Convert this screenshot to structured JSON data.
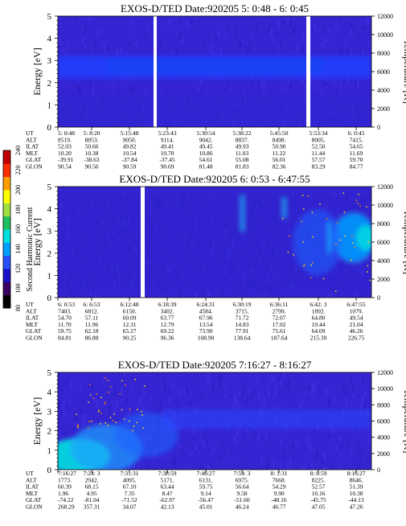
{
  "colorbar": {
    "label": "Second Harmonic Current",
    "ticks": [
      "240",
      "220",
      "200",
      "180",
      "160",
      "140",
      "120",
      "100",
      "80"
    ],
    "colors": [
      "#000000",
      "#3a0060",
      "#1a10c8",
      "#2850ff",
      "#00a0ff",
      "#00e0e0",
      "#20c060",
      "#a0e040",
      "#ffff00",
      "#ffa000",
      "#ff3000",
      "#c00000"
    ]
  },
  "panels": [
    {
      "title": "EXOS-D/TED   Date:920205  5: 0:48 - 6: 0:45",
      "ylabel": "Energy [eV]",
      "y2label": "Temperature [K]",
      "yticks": [
        "0",
        "1",
        "2",
        "3",
        "4",
        "5"
      ],
      "y2ticks": [
        "0",
        "2000",
        "4000",
        "6000",
        "8000",
        "10000",
        "12000"
      ],
      "table": {
        "rows": [
          {
            "label": "UT",
            "values": [
              "5: 0:48",
              "5: 8:20",
              "5:15:48",
              "5:23:43",
              "5:30:54",
              "5:38:22",
              "5:45:50",
              "5:53:34",
              "6: 0:45"
            ]
          },
          {
            "label": "ALT",
            "values": [
              "8519.",
              "8853.",
              "9050.",
              "9114.",
              "9042.",
              "8837.",
              "8498.",
              "8005.",
              "7415."
            ]
          },
          {
            "label": "ILAT",
            "values": [
              "52.03",
              "50.66",
              "49.82",
              "49.41",
              "49.45",
              "49.93",
              "50.90",
              "52.50",
              "54.65"
            ]
          },
          {
            "label": "MLT",
            "values": [
              "10.20",
              "10.38",
              "10.54",
              "10.70",
              "10.86",
              "11.03",
              "11.22",
              "11.44",
              "11.69"
            ]
          },
          {
            "label": "GLAT",
            "values": [
              "-39.91",
              "-38.63",
              "-37.84",
              "-37.45",
              "54.61",
              "55.08",
              "56.01",
              "57.57",
              "59.70"
            ]
          },
          {
            "label": "GLON",
            "values": [
              "90.54",
              "90.56",
              "90.59",
              "90.69",
              "81.48",
              "81.83",
              "82.36",
              "83.29",
              "84.77"
            ]
          }
        ]
      }
    },
    {
      "title": "EXOS-D/TED   Date:920205  6: 0:53 - 6:47:55",
      "ylabel": "Energy [eV]",
      "y2label": "Temperature [K]",
      "yticks": [
        "0",
        "1",
        "2",
        "3",
        "4",
        "5"
      ],
      "y2ticks": [
        "0",
        "2000",
        "4000",
        "6000",
        "8000",
        "10000",
        "12000"
      ],
      "table": {
        "rows": [
          {
            "label": "UT",
            "values": [
              "6: 0:53",
              "6: 6:53",
              "6:12:48",
              "6:18:39",
              "6:24:31",
              "6:30:19",
              "6:36:11",
              "6:42: 3",
              "6:47:55"
            ]
          },
          {
            "label": "ALT",
            "values": [
              "7403.",
              "6812.",
              "6150.",
              "3402.",
              "4584.",
              "3715.",
              "2799.",
              "1892.",
              "1079."
            ]
          },
          {
            "label": "ILAT",
            "values": [
              "54.70",
              "57.11",
              "60.09",
              "63.77",
              "67.96",
              "71.72",
              "72.07",
              "64.80",
              "49.54"
            ]
          },
          {
            "label": "MLT",
            "values": [
              "11.70",
              "11.96",
              "12.31",
              "12.79",
              "13.54",
              "14.83",
              "17.02",
              "19.44",
              "21.04"
            ]
          },
          {
            "label": "GLAT",
            "values": [
              "59.75",
              "62.18",
              "65.27",
              "69.22",
              "73.90",
              "77.91",
              "75.61",
              "64.09",
              "46.26"
            ]
          },
          {
            "label": "GLON",
            "values": [
              "84.81",
              "86.88",
              "90.25",
              "96.36",
              "108.90",
              "138.64",
              "187.64",
              "215.39",
              "226.75"
            ]
          }
        ]
      }
    },
    {
      "title": "EXOS-D/TED   Date:920205  7:16:27 - 8:16:27",
      "ylabel": "Energy [eV]",
      "y2label": "Temperature [K]",
      "yticks": [
        "0",
        "1",
        "2",
        "3",
        "4",
        "5"
      ],
      "y2ticks": [
        "0",
        "2000",
        "4000",
        "6000",
        "8000",
        "10000",
        "12000"
      ],
      "table": {
        "rows": [
          {
            "label": "UT",
            "values": [
              "7:16:27",
              "7:24: 3",
              "7:31:31",
              "7:38:59",
              "7:46:27",
              "7:54: 3",
              "8: 1:31",
              "8: 8:59",
              "8:16:27"
            ]
          },
          {
            "label": "ALT",
            "values": [
              "1773.",
              "2942.",
              "4095.",
              "5171.",
              "6131.",
              "6975.",
              "7668.",
              "8225.",
              "8646."
            ]
          },
          {
            "label": "ILAT",
            "values": [
              "60.39",
              "68.15",
              "67.10",
              "63.44",
              "59.75",
              "56.64",
              "54.29",
              "52.57",
              "51.39"
            ]
          },
          {
            "label": "MLT",
            "values": [
              "1.96",
              "4.95",
              "7.35",
              "8.47",
              "9.14",
              "9.58",
              "9.90",
              "10.16",
              "10.38"
            ]
          },
          {
            "label": "GLAT",
            "values": [
              "-74.22",
              "-81.04",
              "-71.52",
              "-62.97",
              "-56.47",
              "-51.60",
              "-48.16",
              "-45.75",
              "-44.13"
            ]
          },
          {
            "label": "GLON",
            "values": [
              "268.29",
              "357.31",
              "34.07",
              "42.13",
              "45.01",
              "46.24",
              "46.77",
              "47.05",
              "47.26"
            ]
          }
        ]
      }
    }
  ],
  "chart_data": [
    {
      "type": "heatmap",
      "title": "EXOS-D/TED   Date:920205  5: 0:48 - 6: 0:45",
      "ylabel": "Energy [eV]",
      "y2label": "Temperature [K]",
      "ylim": [
        0,
        5
      ],
      "y2lim": [
        0,
        12000
      ],
      "colorbar_range": [
        80,
        240
      ],
      "data_gaps": [
        "~5:21",
        "~5:48"
      ],
      "peak_energy_band_eV": [
        2.3,
        3.1
      ]
    },
    {
      "type": "heatmap",
      "title": "EXOS-D/TED   Date:920205  6: 0:53 - 6:47:55",
      "ylabel": "Energy [eV]",
      "y2label": "Temperature [K]",
      "ylim": [
        0,
        5
      ],
      "y2lim": [
        0,
        12000
      ],
      "colorbar_range": [
        80,
        240
      ],
      "data_gaps": [
        "~6:14"
      ],
      "peak_energy_band_eV": [
        1.5,
        3.5
      ]
    },
    {
      "type": "heatmap",
      "title": "EXOS-D/TED   Date:920205  7:16:27 - 8:16:27",
      "ylabel": "Energy [eV]",
      "y2label": "Temperature [K]",
      "ylim": [
        0,
        5
      ],
      "y2lim": [
        0,
        12000
      ],
      "colorbar_range": [
        80,
        240
      ],
      "data_gaps": [],
      "peak_energy_band_eV": [
        0,
        1.5
      ]
    }
  ]
}
